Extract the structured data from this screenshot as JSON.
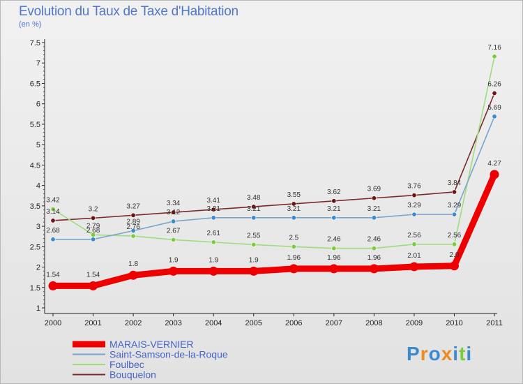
{
  "chart_data": {
    "type": "line",
    "title": "Evolution du Taux de Taxe d'Habitation",
    "subtitle": "(en %)",
    "x": [
      2000,
      2001,
      2002,
      2003,
      2004,
      2005,
      2006,
      2007,
      2008,
      2009,
      2010,
      2011
    ],
    "ylim": [
      1,
      7.5
    ],
    "yticks": [
      1,
      1.5,
      2,
      2.5,
      3,
      3.5,
      4,
      4.5,
      5,
      5.5,
      6,
      6.5,
      7,
      7.5
    ],
    "grid": false,
    "legend_position": "bottom-left",
    "series": [
      {
        "name": "MARAIS-VERNIER",
        "color": "#ee0000",
        "emphasis": true,
        "values": [
          1.54,
          1.54,
          1.8,
          1.9,
          1.9,
          1.9,
          1.96,
          1.96,
          1.96,
          2.01,
          2.03,
          4.27
        ],
        "labels": [
          "1.54",
          "1.54",
          "1.8",
          "1.9",
          "1.9",
          "1.9",
          "1.96",
          "1.96",
          "1.96",
          "2.01",
          "2.0",
          "4.27"
        ]
      },
      {
        "name": "Saint-Samson-de-la-Roque",
        "color": "#7aa4cc",
        "marker": "#3c8ad0",
        "values": [
          2.68,
          2.68,
          2.89,
          3.12,
          3.21,
          3.21,
          3.21,
          3.21,
          3.21,
          3.29,
          3.29,
          5.69
        ],
        "labels": [
          "2.68",
          "2.68",
          "2.89",
          "3.12",
          "3.21",
          "3.21",
          "3.21",
          "3.21",
          "3.21",
          "3.29",
          "3.29",
          "5.69"
        ]
      },
      {
        "name": "Foulbec",
        "color": "#9edc7e",
        "marker": "#7acc3c",
        "values": [
          3.42,
          2.79,
          2.76,
          2.67,
          2.61,
          2.55,
          2.5,
          2.46,
          2.46,
          2.56,
          2.56,
          7.16
        ],
        "labels": [
          "3.42",
          "2.79",
          "2.76",
          "2.67",
          "2.61",
          "2.55",
          "2.5",
          "2.46",
          "2.46",
          "2.56",
          "2.56",
          "7.16"
        ]
      },
      {
        "name": "Bouquelon",
        "color": "#7a2a2a",
        "marker": "#6b1414",
        "values": [
          3.14,
          3.2,
          3.27,
          3.34,
          3.41,
          3.48,
          3.55,
          3.62,
          3.69,
          3.76,
          3.84,
          6.26
        ],
        "labels": [
          "3.14",
          "3.2",
          "3.27",
          "3.34",
          "3.41",
          "3.48",
          "3.55",
          "3.62",
          "3.69",
          "3.76",
          "3.84",
          "6.26"
        ]
      }
    ]
  },
  "brand": {
    "letters": [
      "P",
      "r",
      "o",
      "x",
      "i",
      "t",
      "i"
    ],
    "colors": [
      "#3c8ad0",
      "#ef8a1c",
      "#3c8ad0",
      "#ef8a1c",
      "#3c8ad0",
      "#7acc3c",
      "#3c8ad0"
    ]
  }
}
